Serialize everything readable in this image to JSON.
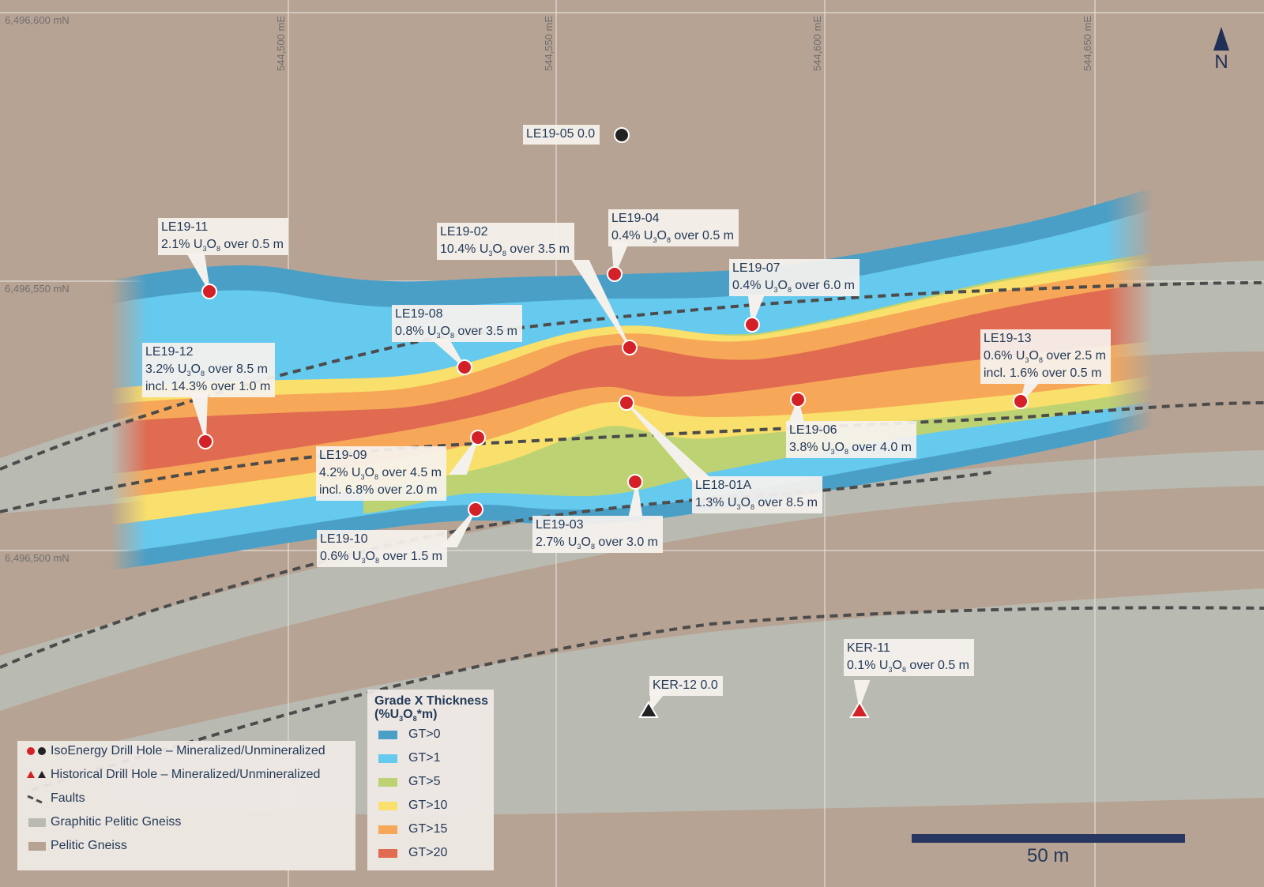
{
  "map_data": {
    "north_label": "N",
    "scale_label": "50 m",
    "grid_labels": {
      "northings": [
        "6,496,600 mN",
        "6,496,550 mN",
        "6,496,500 mN"
      ],
      "eastings": [
        "544,500 mE",
        "544,550 mE",
        "544,600 mE",
        "544,650 mE"
      ]
    },
    "colors": {
      "pelitic_gneiss": "#b7a393",
      "graphitic_pelitic_gneiss": "#b9bbb2",
      "gt0": "#4a9fc7",
      "gt1": "#66c9ee",
      "gt5": "#bdd373",
      "gt10": "#f9df6b",
      "gt15": "#f6a858",
      "gt20": "#e06b50",
      "mineralized": "#d42027",
      "unmineralized": "#222222",
      "label_text": "#243a57"
    },
    "drill_holes": [
      {
        "id": "LE19-05",
        "lines": [
          "LE19-05 0.0"
        ],
        "mineralized": false
      },
      {
        "id": "LE19-11",
        "lines": [
          "LE19-11",
          "2.1% U3O8 over 0.5 m"
        ],
        "mineralized": true
      },
      {
        "id": "LE19-02",
        "lines": [
          "LE19-02",
          "10.4% U3O8 over 3.5 m"
        ],
        "mineralized": true
      },
      {
        "id": "LE19-04",
        "lines": [
          "LE19-04",
          "0.4% U3O8 over 0.5 m"
        ],
        "mineralized": true
      },
      {
        "id": "LE19-07",
        "lines": [
          "LE19-07",
          "0.4% U3O8 over 6.0 m"
        ],
        "mineralized": true
      },
      {
        "id": "LE19-08",
        "lines": [
          "LE19-08",
          "0.8% U3O8 over 3.5 m"
        ],
        "mineralized": true
      },
      {
        "id": "LE19-12",
        "lines": [
          "LE19-12",
          "3.2% U3O8 over 8.5 m",
          "incl. 14.3% over 1.0 m"
        ],
        "mineralized": true
      },
      {
        "id": "LE19-13",
        "lines": [
          "LE19-13",
          "0.6% U3O8 over 2.5 m",
          "incl. 1.6% over 0.5 m"
        ],
        "mineralized": true
      },
      {
        "id": "LE19-06",
        "lines": [
          "LE19-06",
          "3.8% U3O8 over 4.0 m"
        ],
        "mineralized": true
      },
      {
        "id": "LE19-09",
        "lines": [
          "LE19-09",
          "4.2% U3O8 over 4.5 m",
          "incl. 6.8% over 2.0 m"
        ],
        "mineralized": true
      },
      {
        "id": "LE18-01A",
        "lines": [
          "LE18-01A",
          "1.3% U3O8 over 8.5 m"
        ],
        "mineralized": true
      },
      {
        "id": "LE19-03",
        "lines": [
          "LE19-03",
          "2.7% U3O8 over 3.0 m"
        ],
        "mineralized": true
      },
      {
        "id": "LE19-10",
        "lines": [
          "LE19-10",
          "0.6% U3O8 over 1.5 m"
        ],
        "mineralized": true
      },
      {
        "id": "KER-12",
        "lines": [
          "KER-12 0.0"
        ],
        "mineralized": false
      },
      {
        "id": "KER-11",
        "lines": [
          "KER-11",
          "0.1% U3O8 over 0.5 m"
        ],
        "mineralized": true
      }
    ]
  },
  "legend": {
    "items": [
      {
        "label": "IsoEnergy Drill Hole – Mineralized/Unmineralized"
      },
      {
        "label": "Historical Drill Hole – Mineralized/Unmineralized"
      },
      {
        "label": "Faults"
      },
      {
        "label": "Graphitic Pelitic Gneiss"
      },
      {
        "label": "Pelitic Gneiss"
      }
    ],
    "gt_title_line1": "Grade X Thickness",
    "gt_title_line2": "(%U3O8*m)",
    "gt_items": [
      {
        "label": "GT>0",
        "color": "#4a9fc7"
      },
      {
        "label": "GT>1",
        "color": "#66c9ee"
      },
      {
        "label": "GT>5",
        "color": "#bdd373"
      },
      {
        "label": "GT>10",
        "color": "#f9df6b"
      },
      {
        "label": "GT>15",
        "color": "#f6a858"
      },
      {
        "label": "GT>20",
        "color": "#e06b50"
      }
    ]
  }
}
